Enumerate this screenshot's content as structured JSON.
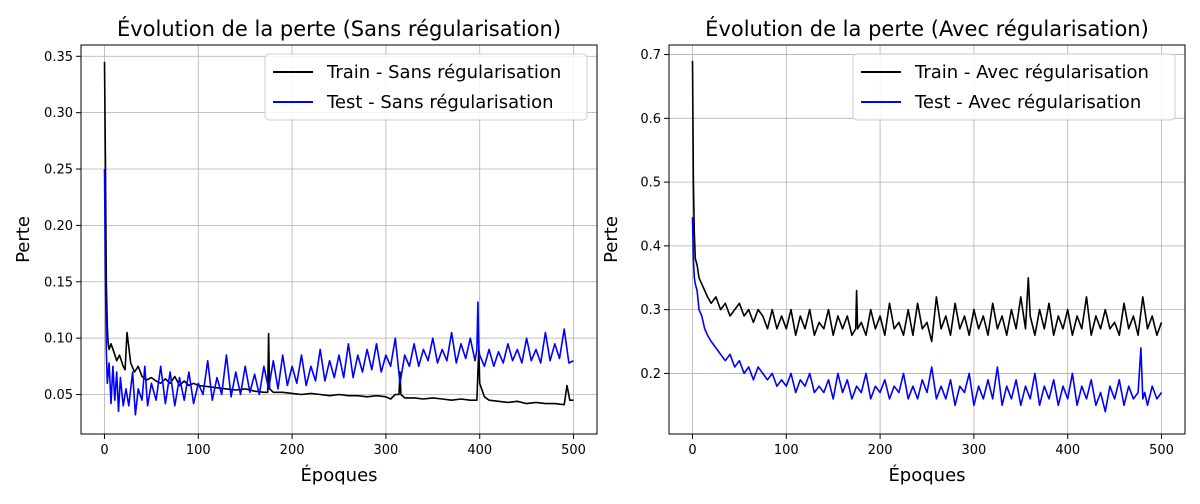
{
  "chart_data": [
    {
      "type": "line",
      "title": "Évolution de la perte (Sans régularisation)",
      "xlabel": "Époques",
      "ylabel": "Perte",
      "xlim": [
        -25,
        525
      ],
      "ylim": [
        0.015,
        0.36
      ],
      "xticks": [
        0,
        100,
        200,
        300,
        400,
        500
      ],
      "xtick_labels": [
        "0",
        "100",
        "200",
        "300",
        "400",
        "500"
      ],
      "yticks": [
        0.05,
        0.1,
        0.15,
        0.2,
        0.25,
        0.3,
        0.35
      ],
      "ytick_labels": [
        "0.05",
        "0.10",
        "0.15",
        "0.20",
        "0.25",
        "0.30",
        "0.35"
      ],
      "grid": true,
      "legend": "top-right",
      "series": [
        {
          "name": "Train - Sans régularisation",
          "color": "#000000",
          "x": [
            0,
            1,
            2,
            3,
            4,
            5,
            7,
            10,
            13,
            16,
            20,
            22,
            24,
            28,
            32,
            36,
            40,
            45,
            50,
            55,
            60,
            65,
            70,
            75,
            80,
            85,
            90,
            95,
            100,
            110,
            120,
            130,
            140,
            150,
            160,
            170,
            174,
            175,
            176,
            180,
            190,
            200,
            210,
            220,
            230,
            240,
            250,
            260,
            270,
            280,
            290,
            300,
            305,
            310,
            314,
            315,
            316,
            320,
            330,
            340,
            350,
            360,
            370,
            380,
            390,
            397,
            398,
            399,
            400,
            405,
            410,
            420,
            430,
            440,
            450,
            460,
            470,
            480,
            490,
            493,
            496,
            500
          ],
          "y": [
            0.345,
            0.26,
            0.15,
            0.11,
            0.095,
            0.09,
            0.095,
            0.088,
            0.08,
            0.085,
            0.075,
            0.072,
            0.105,
            0.078,
            0.07,
            0.075,
            0.066,
            0.063,
            0.065,
            0.062,
            0.06,
            0.064,
            0.06,
            0.066,
            0.058,
            0.062,
            0.058,
            0.06,
            0.058,
            0.057,
            0.056,
            0.055,
            0.054,
            0.055,
            0.053,
            0.052,
            0.052,
            0.104,
            0.055,
            0.052,
            0.052,
            0.051,
            0.05,
            0.051,
            0.05,
            0.049,
            0.05,
            0.049,
            0.049,
            0.048,
            0.049,
            0.048,
            0.046,
            0.05,
            0.05,
            0.07,
            0.05,
            0.047,
            0.047,
            0.046,
            0.047,
            0.046,
            0.045,
            0.046,
            0.045,
            0.045,
            0.07,
            0.09,
            0.06,
            0.048,
            0.045,
            0.044,
            0.043,
            0.044,
            0.042,
            0.043,
            0.042,
            0.042,
            0.041,
            0.058,
            0.045,
            0.045
          ]
        },
        {
          "name": "Test - Sans régularisation",
          "color": "#0000ff",
          "x": [
            0,
            1,
            2,
            3,
            5,
            7,
            9,
            11,
            13,
            15,
            17,
            20,
            23,
            26,
            30,
            33,
            36,
            40,
            43,
            46,
            50,
            55,
            60,
            65,
            70,
            75,
            80,
            85,
            90,
            95,
            100,
            105,
            110,
            115,
            120,
            125,
            130,
            135,
            140,
            145,
            150,
            155,
            160,
            165,
            170,
            175,
            180,
            185,
            190,
            195,
            200,
            205,
            210,
            215,
            220,
            225,
            230,
            235,
            240,
            245,
            250,
            255,
            260,
            265,
            270,
            275,
            280,
            285,
            290,
            295,
            300,
            305,
            310,
            315,
            320,
            325,
            330,
            335,
            340,
            345,
            350,
            355,
            360,
            365,
            370,
            375,
            380,
            385,
            390,
            395,
            397,
            398,
            399,
            400,
            405,
            410,
            415,
            420,
            425,
            430,
            435,
            440,
            445,
            450,
            455,
            460,
            465,
            470,
            475,
            480,
            485,
            490,
            495,
            500
          ],
          "y": [
            0.25,
            0.16,
            0.09,
            0.06,
            0.078,
            0.042,
            0.075,
            0.045,
            0.07,
            0.035,
            0.065,
            0.04,
            0.055,
            0.04,
            0.07,
            0.032,
            0.055,
            0.045,
            0.075,
            0.04,
            0.06,
            0.045,
            0.075,
            0.042,
            0.07,
            0.04,
            0.065,
            0.045,
            0.07,
            0.042,
            0.06,
            0.05,
            0.08,
            0.045,
            0.065,
            0.05,
            0.085,
            0.048,
            0.07,
            0.05,
            0.075,
            0.052,
            0.068,
            0.05,
            0.075,
            0.055,
            0.08,
            0.055,
            0.085,
            0.058,
            0.075,
            0.06,
            0.085,
            0.058,
            0.075,
            0.062,
            0.09,
            0.062,
            0.08,
            0.065,
            0.085,
            0.065,
            0.095,
            0.065,
            0.085,
            0.07,
            0.09,
            0.072,
            0.095,
            0.07,
            0.085,
            0.075,
            0.1,
            0.06,
            0.085,
            0.075,
            0.095,
            0.075,
            0.09,
            0.08,
            0.1,
            0.078,
            0.09,
            0.08,
            0.105,
            0.078,
            0.095,
            0.082,
            0.1,
            0.08,
            0.09,
            0.132,
            0.09,
            0.085,
            0.075,
            0.09,
            0.075,
            0.088,
            0.078,
            0.095,
            0.08,
            0.09,
            0.078,
            0.1,
            0.08,
            0.09,
            0.078,
            0.105,
            0.08,
            0.095,
            0.082,
            0.108,
            0.078,
            0.08
          ]
        }
      ]
    },
    {
      "type": "line",
      "title": "Évolution de la perte (Avec régularisation)",
      "xlabel": "Époques",
      "ylabel": "Perte",
      "xlim": [
        -25,
        525
      ],
      "ylim": [
        0.105,
        0.715
      ],
      "xticks": [
        0,
        100,
        200,
        300,
        400,
        500
      ],
      "xtick_labels": [
        "0",
        "100",
        "200",
        "300",
        "400",
        "500"
      ],
      "yticks": [
        0.2,
        0.3,
        0.4,
        0.5,
        0.6,
        0.7
      ],
      "ytick_labels": [
        "0.2",
        "0.3",
        "0.4",
        "0.5",
        "0.6",
        "0.7"
      ],
      "grid": true,
      "legend": "top-right",
      "series": [
        {
          "name": "Train - Avec régularisation",
          "color": "#000000",
          "x": [
            0,
            1,
            2,
            3,
            5,
            7,
            10,
            13,
            16,
            20,
            25,
            30,
            35,
            40,
            45,
            50,
            55,
            60,
            65,
            70,
            75,
            80,
            85,
            90,
            95,
            100,
            105,
            110,
            115,
            120,
            125,
            130,
            135,
            140,
            145,
            150,
            155,
            160,
            165,
            170,
            174,
            175,
            176,
            180,
            185,
            190,
            195,
            200,
            205,
            210,
            215,
            220,
            225,
            230,
            235,
            240,
            245,
            250,
            255,
            260,
            265,
            270,
            275,
            280,
            285,
            290,
            295,
            300,
            305,
            310,
            315,
            320,
            325,
            330,
            335,
            340,
            345,
            350,
            355,
            358,
            360,
            365,
            370,
            375,
            380,
            385,
            390,
            395,
            400,
            405,
            410,
            415,
            420,
            425,
            430,
            435,
            440,
            445,
            450,
            455,
            460,
            465,
            470,
            475,
            480,
            485,
            490,
            495,
            500
          ],
          "y": [
            0.69,
            0.5,
            0.42,
            0.38,
            0.37,
            0.35,
            0.34,
            0.33,
            0.32,
            0.31,
            0.32,
            0.3,
            0.31,
            0.29,
            0.3,
            0.31,
            0.29,
            0.3,
            0.28,
            0.3,
            0.29,
            0.27,
            0.3,
            0.27,
            0.29,
            0.27,
            0.3,
            0.26,
            0.29,
            0.27,
            0.3,
            0.26,
            0.28,
            0.27,
            0.3,
            0.26,
            0.29,
            0.27,
            0.29,
            0.26,
            0.27,
            0.33,
            0.27,
            0.28,
            0.26,
            0.3,
            0.27,
            0.29,
            0.26,
            0.31,
            0.27,
            0.28,
            0.26,
            0.3,
            0.26,
            0.31,
            0.27,
            0.28,
            0.25,
            0.32,
            0.27,
            0.29,
            0.26,
            0.31,
            0.27,
            0.29,
            0.26,
            0.3,
            0.27,
            0.29,
            0.26,
            0.31,
            0.27,
            0.29,
            0.26,
            0.3,
            0.27,
            0.32,
            0.27,
            0.35,
            0.29,
            0.26,
            0.3,
            0.27,
            0.31,
            0.26,
            0.29,
            0.27,
            0.3,
            0.26,
            0.29,
            0.27,
            0.32,
            0.26,
            0.29,
            0.27,
            0.3,
            0.27,
            0.28,
            0.26,
            0.31,
            0.27,
            0.29,
            0.26,
            0.32,
            0.27,
            0.29,
            0.26,
            0.28
          ]
        },
        {
          "name": "Test - Avec régularisation",
          "color": "#0000ff",
          "x": [
            0,
            1,
            2,
            3,
            5,
            7,
            10,
            13,
            16,
            20,
            25,
            30,
            35,
            40,
            45,
            50,
            55,
            60,
            65,
            70,
            75,
            80,
            85,
            90,
            95,
            100,
            105,
            110,
            115,
            120,
            125,
            130,
            135,
            140,
            145,
            150,
            155,
            160,
            165,
            170,
            175,
            180,
            185,
            190,
            195,
            200,
            205,
            210,
            215,
            220,
            225,
            230,
            235,
            240,
            245,
            250,
            255,
            260,
            265,
            270,
            275,
            280,
            285,
            290,
            295,
            300,
            305,
            310,
            315,
            320,
            325,
            330,
            335,
            340,
            345,
            350,
            355,
            360,
            365,
            370,
            375,
            380,
            385,
            390,
            395,
            400,
            405,
            410,
            415,
            420,
            425,
            430,
            435,
            440,
            445,
            450,
            455,
            460,
            465,
            470,
            475,
            478,
            480,
            482,
            485,
            490,
            495,
            500
          ],
          "y": [
            0.445,
            0.38,
            0.35,
            0.34,
            0.33,
            0.3,
            0.29,
            0.27,
            0.26,
            0.25,
            0.24,
            0.23,
            0.22,
            0.23,
            0.21,
            0.22,
            0.2,
            0.21,
            0.19,
            0.21,
            0.2,
            0.19,
            0.2,
            0.18,
            0.19,
            0.18,
            0.2,
            0.17,
            0.19,
            0.18,
            0.2,
            0.17,
            0.18,
            0.17,
            0.19,
            0.16,
            0.2,
            0.17,
            0.19,
            0.16,
            0.18,
            0.17,
            0.2,
            0.16,
            0.18,
            0.17,
            0.19,
            0.16,
            0.18,
            0.17,
            0.2,
            0.16,
            0.18,
            0.16,
            0.19,
            0.17,
            0.21,
            0.16,
            0.18,
            0.16,
            0.19,
            0.15,
            0.18,
            0.17,
            0.2,
            0.15,
            0.18,
            0.16,
            0.19,
            0.16,
            0.21,
            0.15,
            0.18,
            0.16,
            0.19,
            0.15,
            0.18,
            0.16,
            0.2,
            0.15,
            0.18,
            0.16,
            0.19,
            0.15,
            0.18,
            0.16,
            0.2,
            0.15,
            0.18,
            0.16,
            0.19,
            0.15,
            0.17,
            0.14,
            0.18,
            0.16,
            0.19,
            0.15,
            0.18,
            0.16,
            0.17,
            0.24,
            0.16,
            0.17,
            0.15,
            0.18,
            0.16,
            0.17
          ]
        }
      ]
    }
  ]
}
